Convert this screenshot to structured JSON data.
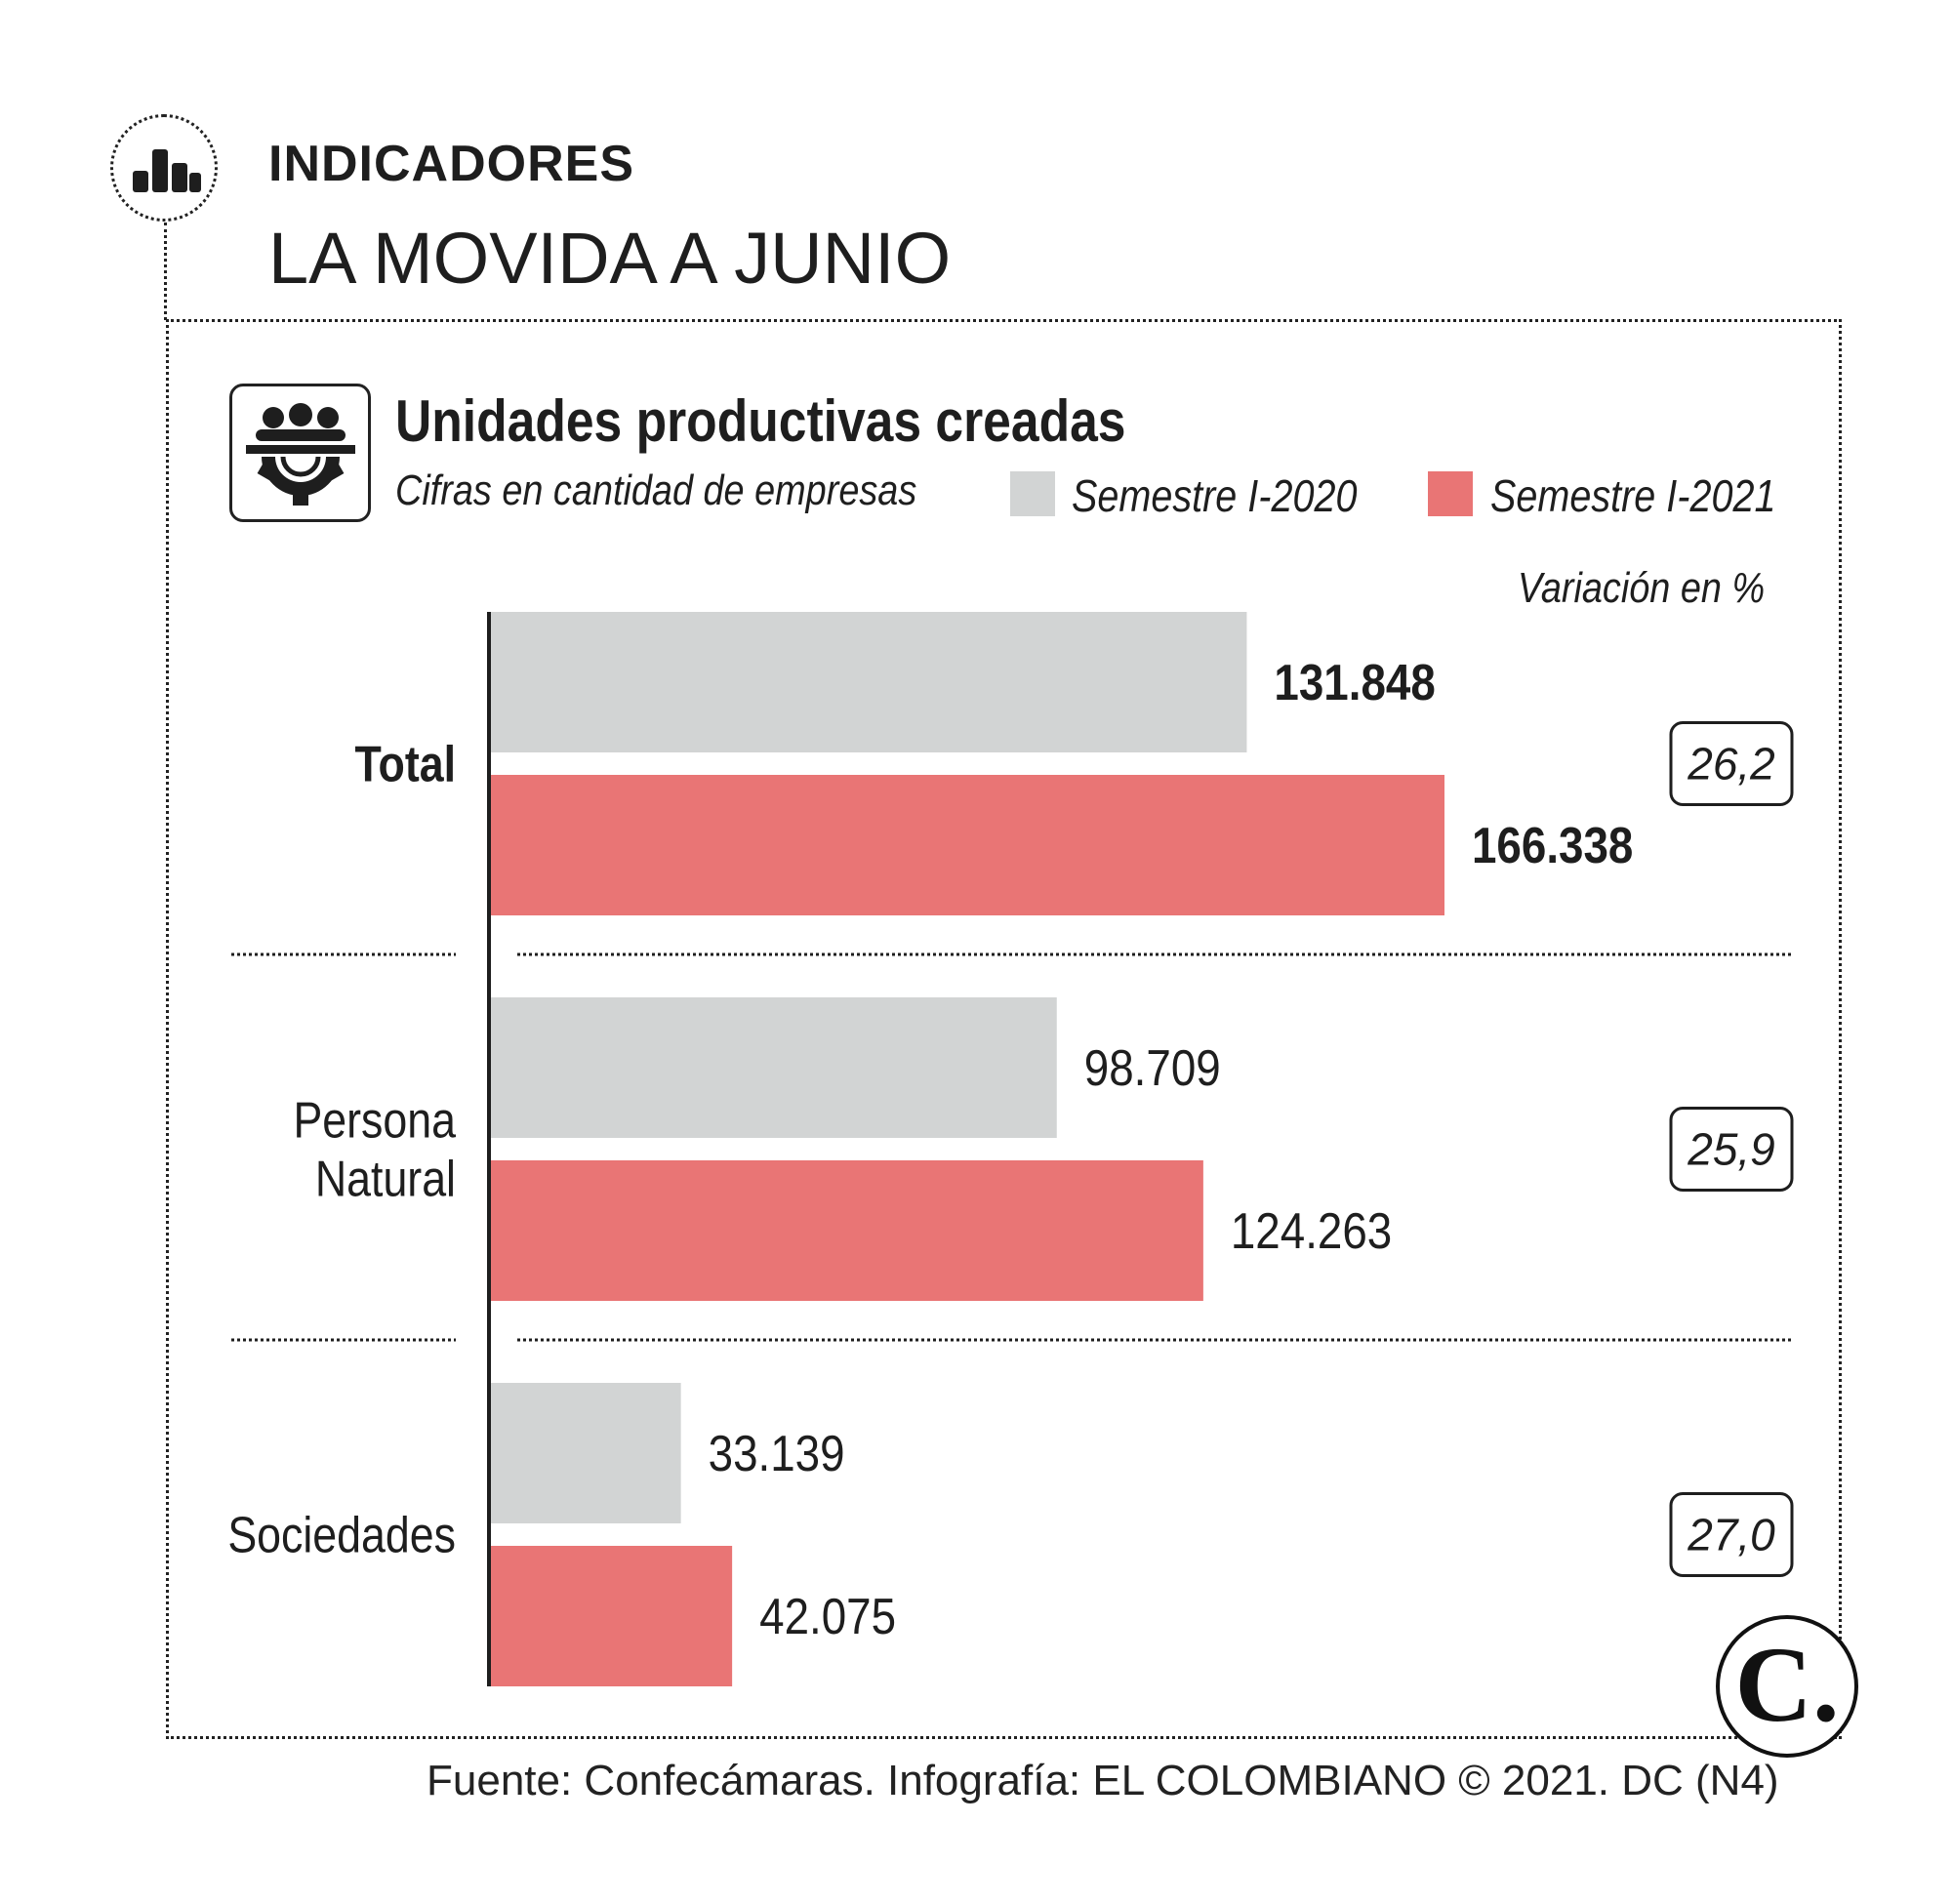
{
  "kicker": "INDICADORES",
  "headline": "LA MOVIDA A JUNIO",
  "chart_data": {
    "type": "bar",
    "orientation": "horizontal",
    "title": "Unidades productivas creadas",
    "subtitle": "Cifras en cantidad de empresas",
    "variation_header": "Variación en %",
    "categories": [
      "Total",
      "Persona Natural",
      "Sociedades"
    ],
    "category_lines": [
      [
        "Total"
      ],
      [
        "Persona",
        "Natural"
      ],
      [
        "Sociedades"
      ]
    ],
    "series": [
      {
        "name": "Semestre I-2020",
        "color": "#d2d4d4",
        "values": [
          131848,
          98709,
          33139
        ],
        "labels": [
          "131.848",
          "98.709",
          "33.139"
        ]
      },
      {
        "name": "Semestre I-2021",
        "color": "#e97575",
        "values": [
          166338,
          124263,
          42075
        ],
        "labels": [
          "166.338",
          "124.263",
          "42.075"
        ]
      }
    ],
    "variation": [
      "26,2",
      "25,9",
      "27,0"
    ],
    "bold_categories": [
      "Total"
    ],
    "legend_position": "top-right",
    "grid": false
  },
  "source": "Fuente: Confecámaras. Infografía: EL COLOMBIANO © 2021. DC (N4)",
  "logo_text": "C."
}
